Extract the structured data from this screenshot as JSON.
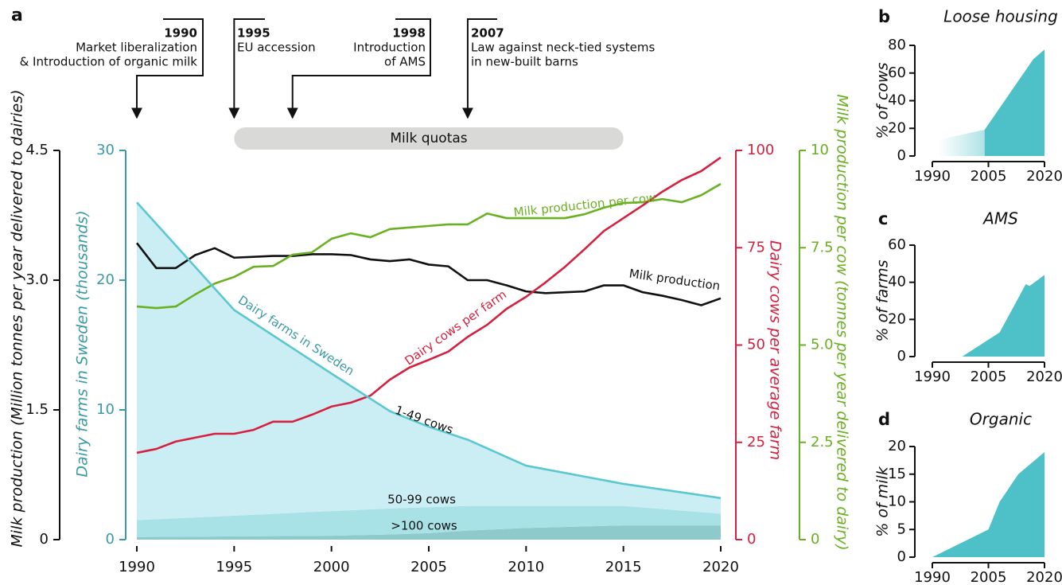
{
  "chart_data": [
    {
      "type": "line",
      "label": "a",
      "x": [
        1990,
        1991,
        1992,
        1993,
        1994,
        1995,
        1996,
        1997,
        1998,
        1999,
        2000,
        2001,
        2002,
        2003,
        2004,
        2005,
        2006,
        2007,
        2008,
        2009,
        2010,
        2011,
        2012,
        2013,
        2014,
        2015,
        2016,
        2017,
        2018,
        2019,
        2020
      ],
      "xlim": [
        1990,
        2020
      ],
      "xticks": [
        1990,
        1995,
        2000,
        2005,
        2010,
        2015,
        2020
      ],
      "y_axes": [
        {
          "title": "Milk production (Million tonnes per year delivered to dairies)",
          "ylim": [
            0,
            4.5
          ],
          "yticks": [
            0,
            1.5,
            {
              "value": 3,
              "label": "3.0"
            },
            4.5
          ],
          "color": "#111111"
        },
        {
          "title": "Dairy farms in Sweden (thousands)",
          "ylim": [
            0,
            30
          ],
          "yticks": [
            0,
            10,
            20,
            30
          ],
          "color": "#3a9aa6"
        },
        {
          "title": "Dairy cows per average farm",
          "ylim": [
            0,
            100
          ],
          "yticks": [
            0,
            25,
            50,
            75,
            100
          ],
          "color": "#d6203f"
        },
        {
          "title": "Milk production per cow (tonnes per year delivered to dairy)",
          "ylim": [
            0,
            10
          ],
          "yticks": [
            0,
            2.5,
            {
              "value": 5,
              "label": "5.0"
            },
            7.5,
            10
          ],
          "color": "#6ab023"
        }
      ],
      "series": [
        {
          "name": "Milk production",
          "type": "line",
          "axis": 0,
          "color": "#111111",
          "values": [
            3.43,
            3.14,
            3.14,
            3.29,
            3.37,
            3.26,
            3.27,
            3.28,
            3.28,
            3.3,
            3.3,
            3.29,
            3.24,
            3.22,
            3.24,
            3.18,
            3.16,
            3.0,
            3.0,
            2.94,
            2.87,
            2.85,
            2.86,
            2.87,
            2.94,
            2.94,
            2.86,
            2.82,
            2.77,
            2.71,
            2.79
          ]
        },
        {
          "name": "Milk production per cow",
          "type": "line",
          "axis": 3,
          "color": "#6ab023",
          "values": [
            5.99,
            5.95,
            5.99,
            6.3,
            6.58,
            6.75,
            7.01,
            7.03,
            7.32,
            7.38,
            7.73,
            7.87,
            7.77,
            7.98,
            8.02,
            8.06,
            8.1,
            8.1,
            8.38,
            8.26,
            8.26,
            8.26,
            8.26,
            8.36,
            8.53,
            8.65,
            8.67,
            8.75,
            8.67,
            8.85,
            9.14
          ]
        },
        {
          "name": "Dairy cows per farm",
          "type": "line",
          "axis": 2,
          "color": "#d6203f",
          "values": [
            22.3,
            23.3,
            25.2,
            26.2,
            27.2,
            27.2,
            28.2,
            30.3,
            30.3,
            32.1,
            34.2,
            35.2,
            37.0,
            41.1,
            44.2,
            46.2,
            48.3,
            52.1,
            55.2,
            59.3,
            62.4,
            66.1,
            70.1,
            74.6,
            79.3,
            82.6,
            85.9,
            89.4,
            92.4,
            94.7,
            98.2
          ]
        },
        {
          "name": "Dairy farms in Sweden",
          "type": "line",
          "axis": 1,
          "color": "#5bc8d0",
          "x": [
            1990,
            1995,
            2000,
            2003,
            2005,
            2007,
            2010,
            2015,
            2020
          ],
          "values": [
            26,
            17.7,
            12.8,
            9.9,
            8.7,
            7.7,
            5.7,
            4.3,
            3.2
          ]
        },
        {
          "name": ">100 cows",
          "type": "area",
          "axis": 1,
          "color": "#8ec9cb",
          "x": [
            1990,
            1995,
            2000,
            2003,
            2005,
            2007,
            2010,
            2015,
            2020
          ],
          "values": [
            0.2,
            0.25,
            0.3,
            0.4,
            0.5,
            0.7,
            0.9,
            1.1,
            1.1
          ]
        },
        {
          "name": "50-99 cows",
          "type": "area",
          "axis": 1,
          "color": "#a8e2e6",
          "x": [
            1990,
            1995,
            2000,
            2003,
            2005,
            2007,
            2010,
            2015,
            2020
          ],
          "values": [
            1.3,
            1.6,
            1.9,
            2.0,
            2.0,
            1.9,
            1.7,
            1.5,
            0.9
          ]
        },
        {
          "name": "1-49 cows",
          "type": "area",
          "axis": 1,
          "color": "#cbeef4",
          "x": [
            1990,
            1995,
            2000,
            2003,
            2005,
            2007,
            2010,
            2015,
            2020
          ],
          "values": [
            24.5,
            15.85,
            10.6,
            7.5,
            6.2,
            5.1,
            3.1,
            1.7,
            1.2
          ]
        }
      ],
      "events": [
        {
          "year": 1990,
          "lines": [
            "Market liberalization",
            "& Introduction of organic milk"
          ]
        },
        {
          "year": 1995,
          "lines": [
            "EU accession"
          ]
        },
        {
          "year": 1998,
          "lines": [
            "Introduction",
            "of AMS"
          ]
        },
        {
          "year": 2007,
          "lines": [
            "Law against neck-tied systems",
            "in new-built barns"
          ]
        }
      ],
      "period": {
        "label": "Milk quotas",
        "start": 1995,
        "end": 2015
      }
    },
    {
      "type": "area",
      "label": "b",
      "title": "Loose housing",
      "ylabel": "% of cows",
      "color": "#4dc0c8",
      "x": [
        1992,
        2004,
        2017,
        2020
      ],
      "values": [
        12,
        19,
        70,
        77
      ],
      "fade_before": 2004,
      "xlim": [
        1990,
        2020
      ],
      "xticks": [
        1990,
        2005,
        2020
      ],
      "ylim": [
        0,
        80
      ],
      "yticks": [
        0,
        20,
        40,
        60,
        80
      ]
    },
    {
      "type": "area",
      "label": "c",
      "title": "AMS",
      "ylabel": "% of farms",
      "color": "#4dc0c8",
      "x": [
        1998,
        2008,
        2015,
        2016,
        2020
      ],
      "values": [
        0,
        13,
        39,
        38,
        44
      ],
      "xlim": [
        1990,
        2020
      ],
      "xticks": [
        1990,
        2005,
        2020
      ],
      "ylim": [
        0,
        60
      ],
      "yticks": [
        0,
        20,
        40,
        60
      ]
    },
    {
      "type": "area",
      "label": "d",
      "title": "Organic",
      "ylabel": "% of milk",
      "color": "#4dc0c8",
      "x": [
        1990,
        2005,
        2008,
        2013,
        2020
      ],
      "values": [
        0,
        5,
        10,
        15,
        19
      ],
      "xlim": [
        1990,
        2020
      ],
      "xticks": [
        1990,
        2005,
        2020
      ],
      "ylim": [
        0,
        20
      ],
      "yticks": [
        0,
        5,
        10,
        15,
        20
      ]
    }
  ]
}
